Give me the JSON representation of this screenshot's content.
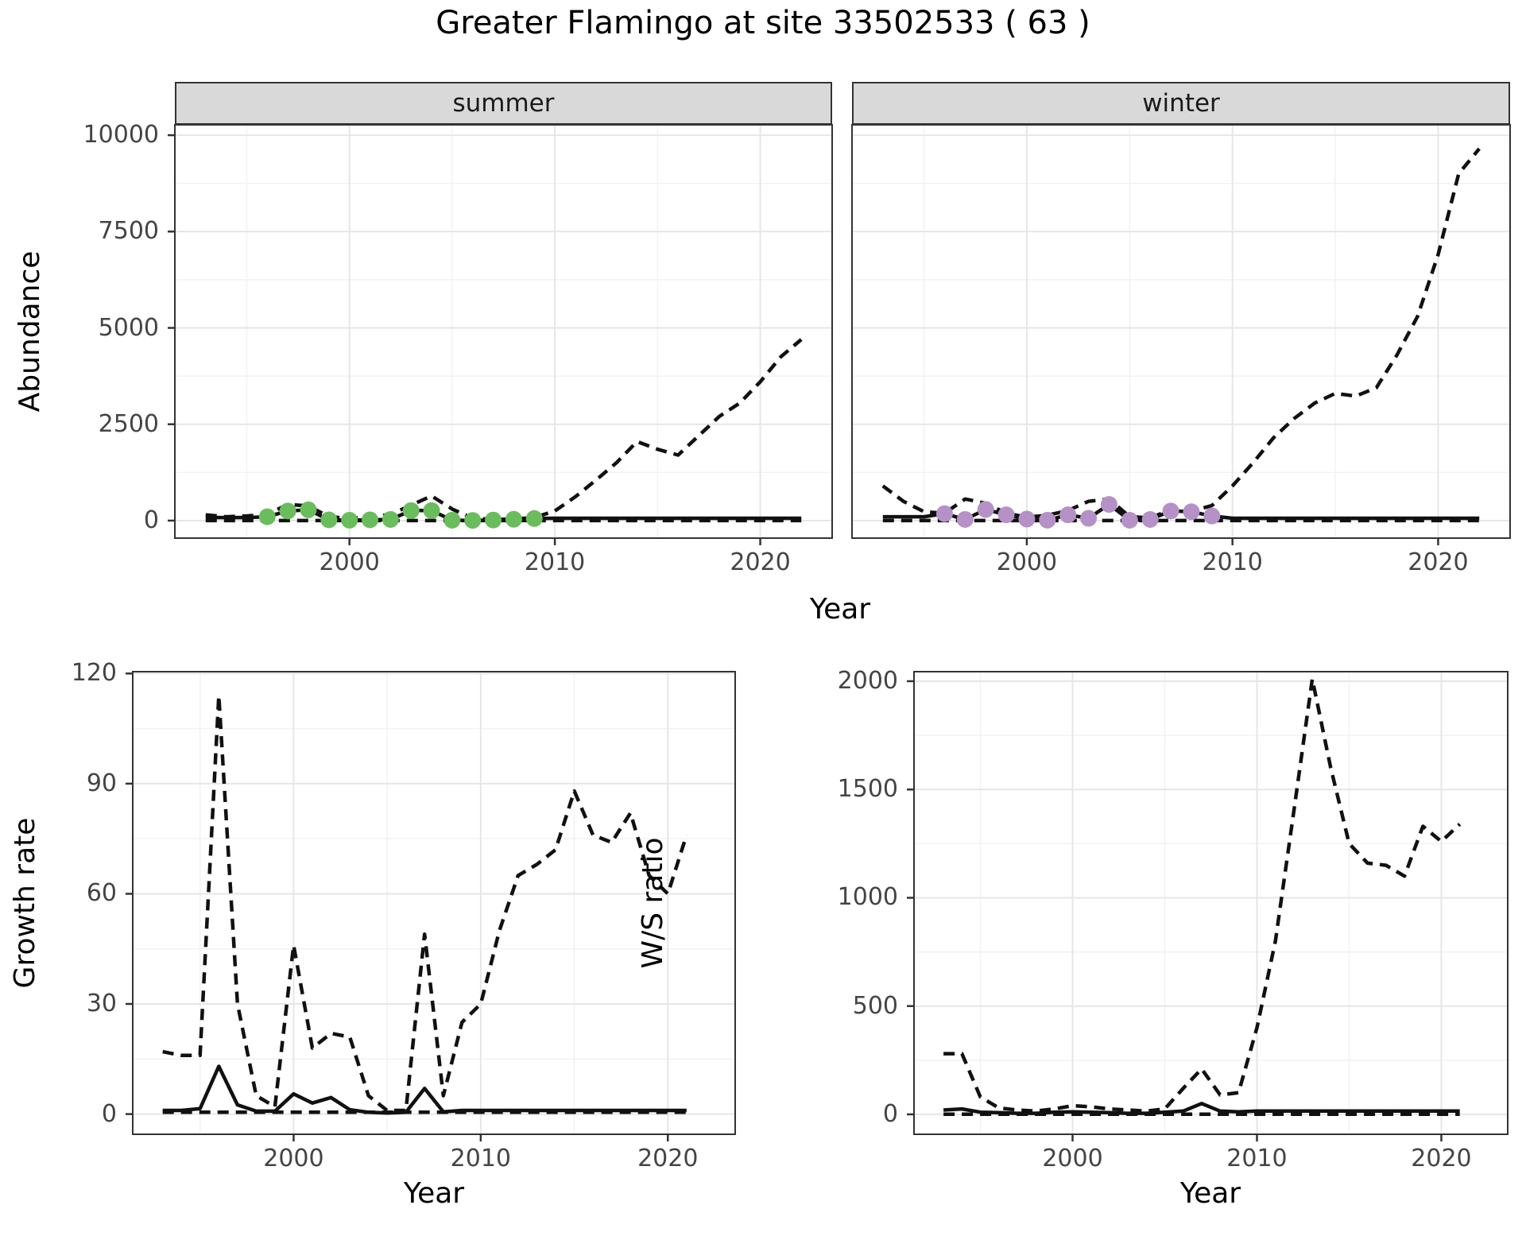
{
  "title": "Greater Flamingo at site 33502533 ( 63 )",
  "colors": {
    "summer_point": "#6abd5c",
    "winter_point": "#b591c7",
    "line": "#111111",
    "grid_major": "#e6e6e6",
    "grid_minor": "#f2f2f2",
    "strip_bg": "#d9d9d9",
    "panel_border": "#333333",
    "axis_text": "#444444"
  },
  "chart_data": [
    {
      "id": "abundance-summer",
      "type": "line",
      "facet": "summer",
      "xlabel": "Year",
      "ylabel": "Abundance",
      "xlim": [
        1991.5,
        2023.5
      ],
      "ylim": [
        -455,
        10270
      ],
      "xticks": [
        2000,
        2010,
        2020
      ],
      "xminor": [
        1995,
        2005,
        2015
      ],
      "yticks": [
        0,
        2500,
        5000,
        7500,
        10000
      ],
      "yminor": [
        1250,
        3750,
        6250,
        8750
      ],
      "show_y_labels": true,
      "series": [
        {
          "name": "baseline-dashed",
          "style": "dashed",
          "x": [
            1993,
            2022
          ],
          "y": [
            0,
            0
          ]
        },
        {
          "name": "modelled-dashed",
          "style": "dashed",
          "x": [
            1993,
            1994,
            1995,
            1996,
            1997,
            1998,
            1999,
            2000,
            2001,
            2002,
            2003,
            2004,
            2005,
            2006,
            2007,
            2008,
            2009,
            2010,
            2011,
            2012,
            2013,
            2014,
            2015,
            2016,
            2017,
            2018,
            2019,
            2020,
            2021,
            2022
          ],
          "y": [
            150,
            100,
            120,
            160,
            420,
            380,
            100,
            60,
            90,
            160,
            400,
            640,
            300,
            60,
            30,
            40,
            80,
            250,
            620,
            1050,
            1500,
            2050,
            1850,
            1700,
            2200,
            2700,
            3050,
            3600,
            4250,
            4700
          ]
        },
        {
          "name": "observed-solid",
          "style": "solid",
          "x": [
            1993,
            1994,
            1995,
            1996,
            1997,
            1998,
            1999,
            2000,
            2001,
            2002,
            2003,
            2004,
            2005,
            2006,
            2007,
            2008,
            2009,
            2010,
            2011,
            2012,
            2013,
            2014,
            2015,
            2016,
            2017,
            2018,
            2019,
            2020,
            2021,
            2022
          ],
          "y": [
            80,
            80,
            80,
            100,
            250,
            280,
            20,
            10,
            20,
            30,
            260,
            260,
            10,
            5,
            15,
            35,
            55,
            60,
            60,
            60,
            60,
            60,
            60,
            60,
            60,
            60,
            60,
            60,
            60,
            60
          ]
        },
        {
          "name": "count-points",
          "style": "points",
          "color": "#6abd5c",
          "x": [
            1996,
            1997,
            1998,
            1999,
            2000,
            2001,
            2002,
            2003,
            2004,
            2005,
            2006,
            2007,
            2008,
            2009
          ],
          "y": [
            100,
            250,
            280,
            20,
            10,
            20,
            30,
            260,
            260,
            10,
            5,
            15,
            35,
            55
          ]
        }
      ]
    },
    {
      "id": "abundance-winter",
      "type": "line",
      "facet": "winter",
      "xlabel": "Year",
      "ylabel": "Abundance",
      "xlim": [
        1991.5,
        2023.5
      ],
      "ylim": [
        -455,
        10270
      ],
      "xticks": [
        2000,
        2010,
        2020
      ],
      "xminor": [
        1995,
        2005,
        2015
      ],
      "yticks": [
        0,
        2500,
        5000,
        7500,
        10000
      ],
      "yminor": [
        1250,
        3750,
        6250,
        8750
      ],
      "show_y_labels": false,
      "series": [
        {
          "name": "baseline-dashed",
          "style": "dashed",
          "x": [
            1993,
            2022
          ],
          "y": [
            0,
            0
          ]
        },
        {
          "name": "modelled-dashed",
          "style": "dashed",
          "x": [
            1993,
            1994,
            1995,
            1996,
            1997,
            1998,
            1999,
            2000,
            2001,
            2002,
            2003,
            2004,
            2005,
            2006,
            2007,
            2008,
            2009,
            2010,
            2011,
            2012,
            2013,
            2014,
            2015,
            2016,
            2017,
            2018,
            2019,
            2020,
            2021,
            2022
          ],
          "y": [
            900,
            500,
            230,
            190,
            560,
            450,
            190,
            90,
            140,
            260,
            500,
            560,
            100,
            70,
            280,
            240,
            390,
            900,
            1500,
            2150,
            2650,
            3050,
            3300,
            3230,
            3450,
            4300,
            5300,
            6900,
            9000,
            9650
          ]
        },
        {
          "name": "observed-solid",
          "style": "solid",
          "x": [
            1993,
            1994,
            1995,
            1996,
            1997,
            1998,
            1999,
            2000,
            2001,
            2002,
            2003,
            2004,
            2005,
            2006,
            2007,
            2008,
            2009,
            2010,
            2011,
            2012,
            2013,
            2014,
            2015,
            2016,
            2017,
            2018,
            2019,
            2020,
            2021,
            2022
          ],
          "y": [
            100,
            100,
            100,
            180,
            30,
            290,
            150,
            40,
            10,
            150,
            60,
            420,
            10,
            30,
            250,
            230,
            120,
            60,
            60,
            60,
            60,
            60,
            60,
            60,
            60,
            60,
            60,
            60,
            60,
            60
          ]
        },
        {
          "name": "count-points",
          "style": "points",
          "color": "#b591c7",
          "x": [
            1996,
            1997,
            1998,
            1999,
            2000,
            2001,
            2002,
            2003,
            2004,
            2005,
            2006,
            2007,
            2008,
            2009
          ],
          "y": [
            180,
            30,
            290,
            150,
            40,
            10,
            150,
            60,
            420,
            10,
            30,
            250,
            230,
            120
          ]
        }
      ]
    },
    {
      "id": "growth-rate",
      "type": "line",
      "facet": "",
      "xlabel": "Year",
      "ylabel": "Growth rate",
      "xlim": [
        1991.4,
        2023.6
      ],
      "ylim": [
        -5.5,
        120.5
      ],
      "xticks": [
        2000,
        2010,
        2020
      ],
      "xminor": [
        1995,
        2005,
        2015
      ],
      "yticks": [
        0,
        30,
        60,
        90,
        120
      ],
      "yminor": [
        15,
        45,
        75,
        105
      ],
      "show_y_labels": true,
      "series": [
        {
          "name": "baseline-dashed",
          "style": "dashed",
          "x": [
            1993,
            2021
          ],
          "y": [
            0.5,
            0.5
          ]
        },
        {
          "name": "modelled-dashed",
          "style": "dashed",
          "x": [
            1993,
            1994,
            1995,
            1996,
            1997,
            1998,
            1999,
            2000,
            2001,
            2002,
            2003,
            2004,
            2005,
            2006,
            2007,
            2008,
            2009,
            2010,
            2011,
            2012,
            2013,
            2014,
            2015,
            2016,
            2017,
            2018,
            2019,
            2020,
            2021
          ],
          "y": [
            17,
            16,
            16,
            114,
            30,
            5,
            2,
            46,
            18,
            22,
            21,
            5,
            1,
            1,
            49,
            5,
            25,
            30,
            50,
            65,
            68,
            72,
            88,
            76,
            74,
            82,
            65,
            60,
            76
          ]
        },
        {
          "name": "observed-solid",
          "style": "solid",
          "x": [
            1993,
            1994,
            1995,
            1996,
            1997,
            1998,
            1999,
            2000,
            2001,
            2002,
            2003,
            2004,
            2005,
            2006,
            2007,
            2008,
            2009,
            2010,
            2011,
            2012,
            2013,
            2014,
            2015,
            2016,
            2017,
            2018,
            2019,
            2020,
            2021
          ],
          "y": [
            1,
            1,
            1.5,
            13,
            2.5,
            0.8,
            0.8,
            5.5,
            3,
            4.5,
            1.2,
            0.5,
            0.3,
            0.5,
            7,
            0.6,
            1,
            1,
            1,
            1,
            1,
            1,
            1,
            1,
            1,
            1,
            1,
            1,
            1
          ]
        }
      ]
    },
    {
      "id": "ws-ratio",
      "type": "line",
      "facet": "",
      "xlabel": "Year",
      "ylabel": "W/S ratio",
      "xlim": [
        1991.4,
        2023.6
      ],
      "ylim": [
        -92,
        2044
      ],
      "xticks": [
        2000,
        2010,
        2020
      ],
      "xminor": [
        1995,
        2005,
        2015
      ],
      "yticks": [
        0,
        500,
        1000,
        1500,
        2000
      ],
      "yminor": [
        250,
        750,
        1250,
        1750
      ],
      "show_y_labels": true,
      "series": [
        {
          "name": "baseline-dashed",
          "style": "dashed",
          "x": [
            1993,
            2021
          ],
          "y": [
            1,
            1
          ]
        },
        {
          "name": "modelled-dashed",
          "style": "dashed",
          "x": [
            1993,
            1994,
            1995,
            1996,
            1997,
            1998,
            1999,
            2000,
            2001,
            2002,
            2003,
            2004,
            2005,
            2006,
            2007,
            2008,
            2009,
            2010,
            2011,
            2012,
            2013,
            2014,
            2015,
            2016,
            2017,
            2018,
            2019,
            2020,
            2021
          ],
          "y": [
            280,
            280,
            80,
            30,
            20,
            15,
            25,
            40,
            35,
            25,
            20,
            15,
            25,
            120,
            210,
            90,
            100,
            400,
            800,
            1400,
            2010,
            1600,
            1250,
            1160,
            1150,
            1100,
            1330,
            1260,
            1340
          ]
        },
        {
          "name": "observed-solid",
          "style": "solid",
          "x": [
            1993,
            1994,
            1995,
            1996,
            1997,
            1998,
            1999,
            2000,
            2001,
            2002,
            2003,
            2004,
            2005,
            2006,
            2007,
            2008,
            2009,
            2010,
            2011,
            2012,
            2013,
            2014,
            2015,
            2016,
            2017,
            2018,
            2019,
            2020,
            2021
          ],
          "y": [
            20,
            25,
            10,
            8,
            5,
            5,
            10,
            12,
            10,
            8,
            5,
            5,
            10,
            15,
            50,
            15,
            12,
            15,
            15,
            15,
            15,
            15,
            15,
            15,
            15,
            15,
            15,
            15,
            15
          ]
        }
      ]
    }
  ]
}
